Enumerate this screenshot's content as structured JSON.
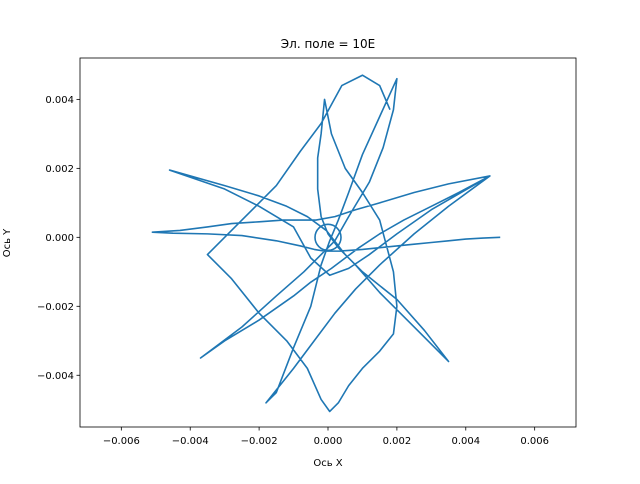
{
  "chart_data": {
    "type": "line",
    "title": "Эл. поле = 10E",
    "xlabel": "Ось X",
    "ylabel": "Ось Y",
    "xlim": [
      -0.0072,
      0.0072
    ],
    "ylim": [
      -0.0055,
      0.0052
    ],
    "xticks": [
      -0.006,
      -0.004,
      -0.002,
      0.0,
      0.002,
      0.004,
      0.006
    ],
    "xtick_labels": [
      "−0.006",
      "−0.004",
      "−0.002",
      "0.000",
      "0.002",
      "0.004",
      "0.006"
    ],
    "yticks": [
      -0.004,
      -0.002,
      0.0,
      0.002,
      0.004
    ],
    "ytick_labels": [
      "−0.004",
      "−0.002",
      "0.000",
      "0.002",
      "0.004"
    ],
    "grid": false,
    "legend": "none",
    "series_color": "#1f77b4",
    "series": [
      {
        "x": [
          0.005,
          0.0045,
          0.004,
          0.0035,
          0.003,
          0.0025,
          0.002,
          0.0015,
          0.001,
          0.0006,
          0.0003,
          0.0001,
          -0.0001,
          -0.0004,
          -0.0008,
          -0.0015,
          -0.0025,
          -0.0035,
          -0.0045,
          -0.0051,
          -0.0043,
          -0.0035,
          -0.0028,
          -0.002,
          -0.0013,
          -0.0007,
          -0.00035,
          0.0002,
          0.0008,
          0.0015,
          0.0025,
          0.0035,
          0.0047,
          0.0038,
          0.003,
          0.0022,
          0.0015,
          0.0009,
          0.0005,
          0.0001,
          -0.0005,
          -0.001,
          -0.002,
          -0.003,
          -0.0037,
          -0.0025,
          -0.0015,
          -0.0007,
          -0.0002,
          0.0002,
          0.0006,
          0.0012,
          0.0016,
          0.0019,
          0.002,
          0.0015,
          0.001,
          0.0006,
          0.0003,
          5e-05,
          -0.0002,
          -0.0005,
          -0.001,
          -0.0015,
          -0.0018,
          -0.001,
          -0.0004,
          0.0002,
          0.0008,
          0.0015,
          0.0025,
          0.0035,
          0.0047,
          0.003,
          0.002,
          0.0012,
          0.0006,
          5e-05,
          -0.0005,
          -0.001,
          -0.002,
          -0.003,
          -0.0046,
          -0.003,
          -0.002,
          -0.0012,
          -0.0006,
          -5e-05,
          0.0005,
          0.001,
          0.002,
          0.0028,
          0.0035,
          0.0025,
          0.0015,
          0.0008,
          0.0003,
          0.0,
          -0.0002,
          -0.0003,
          -0.0003,
          -0.0002,
          -0.0001,
          0.0001,
          0.0005,
          0.001,
          0.0015,
          0.0019,
          0.002,
          0.0019,
          0.0015,
          0.001,
          0.0006,
          0.0003,
          5e-05,
          -0.0002,
          -0.0006,
          -0.0012,
          -0.002,
          -0.0028,
          -0.0035,
          -0.0025,
          -0.0015,
          -0.0008,
          -0.0002,
          0.0004,
          0.001,
          0.0015,
          0.0018
        ],
        "y": [
          0.0,
          -2e-05,
          -5e-05,
          -0.0001,
          -0.00015,
          -0.0002,
          -0.00025,
          -0.0003,
          -0.00035,
          -0.00038,
          -0.0004,
          -0.0004,
          -0.0004,
          -0.00035,
          -0.00025,
          -0.0001,
          5e-05,
          0.0001,
          0.00012,
          0.00015,
          0.0002,
          0.0003,
          0.0004,
          0.00045,
          0.0005,
          0.0005,
          0.0005,
          0.0006,
          0.0008,
          0.001,
          0.0013,
          0.00155,
          0.00178,
          0.0013,
          0.0009,
          0.0005,
          0.0001,
          -0.0003,
          -0.0006,
          -0.0009,
          -0.0013,
          -0.0017,
          -0.0024,
          -0.003,
          -0.0035,
          -0.0026,
          -0.0017,
          -0.001,
          -0.0005,
          -0.0001,
          0.0006,
          0.0016,
          0.0026,
          0.0037,
          0.0046,
          0.0035,
          0.0024,
          0.0013,
          0.0005,
          -0.0001,
          -0.0008,
          -0.002,
          -0.0032,
          -0.0045,
          -0.0048,
          -0.0038,
          -0.003,
          -0.0022,
          -0.0015,
          -0.0008,
          0.0001,
          0.0009,
          0.00178,
          0.0008,
          0.0001,
          -0.0005,
          -0.0009,
          -0.0011,
          -0.0006,
          0.0003,
          0.0009,
          0.0014,
          0.00195,
          0.0015,
          0.0012,
          0.0009,
          0.0006,
          0.0002,
          -0.0005,
          -0.001,
          -0.0018,
          -0.0027,
          -0.0036,
          -0.0026,
          -0.0016,
          -0.0008,
          -0.0003,
          0.0001,
          0.0006,
          0.0014,
          0.0023,
          0.003,
          0.004,
          0.003,
          0.002,
          0.0013,
          0.0005,
          -0.001,
          -0.002,
          -0.0028,
          -0.0033,
          -0.0038,
          -0.0043,
          -0.0048,
          -0.00505,
          -0.0047,
          -0.0038,
          -0.003,
          -0.0022,
          -0.0012,
          -0.0005,
          0.0005,
          0.0015,
          0.0025,
          0.0033,
          0.0044,
          0.0047,
          0.0044,
          0.0037
        ],
        "note_segments": true
      }
    ]
  }
}
